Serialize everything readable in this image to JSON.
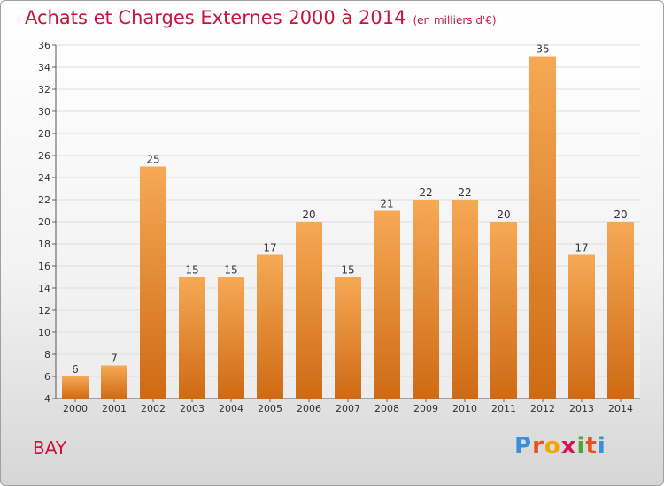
{
  "title": "Achats et Charges Externes 2000 à 2014",
  "unit": "(en milliers d'€)",
  "commune": "BAY",
  "logo": {
    "text": "Proxiti",
    "letters": [
      "P",
      "r",
      "o",
      "x",
      "i",
      "t",
      "i"
    ],
    "colors": [
      "#3a8fd6",
      "#e8511e",
      "#f2a500",
      "#d4145a",
      "#4aa832",
      "#e8511e",
      "#3a8fd6"
    ]
  },
  "colors": {
    "title": "#c8143c",
    "bar_top": "#f6a955",
    "bar_bottom": "#cf6a14"
  },
  "chart_data": {
    "type": "bar",
    "title": "Achats et Charges Externes 2000 à 2014",
    "subtitle": "(en milliers d'€)",
    "categories": [
      "2000",
      "2001",
      "2002",
      "2003",
      "2004",
      "2005",
      "2006",
      "2007",
      "2008",
      "2009",
      "2010",
      "2011",
      "2012",
      "2013",
      "2014"
    ],
    "values": [
      6,
      7,
      25,
      15,
      15,
      17,
      20,
      15,
      21,
      22,
      22,
      20,
      35,
      17,
      20
    ],
    "ylim": [
      4,
      36
    ],
    "yticks": [
      4,
      6,
      8,
      10,
      12,
      14,
      16,
      18,
      20,
      22,
      24,
      26,
      28,
      30,
      32,
      34,
      36
    ],
    "grid": true,
    "data_labels": true,
    "xlabel": "",
    "ylabel": ""
  }
}
